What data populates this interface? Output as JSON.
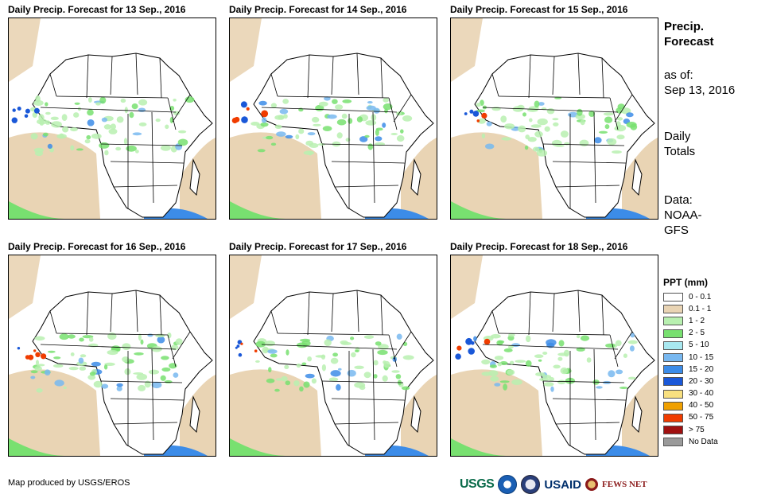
{
  "panels": [
    {
      "title": "Daily Precip. Forecast for 13 Sep., 2016"
    },
    {
      "title": "Daily Precip. Forecast for 14 Sep., 2016"
    },
    {
      "title": "Daily Precip. Forecast for 15 Sep., 2016"
    },
    {
      "title": "Daily Precip. Forecast for 16 Sep., 2016"
    },
    {
      "title": "Daily Precip. Forecast for 17 Sep., 2016"
    },
    {
      "title": "Daily Precip. Forecast for 18 Sep., 2016"
    }
  ],
  "sidebar": {
    "title_line1": "Precip.",
    "title_line2": "Forecast",
    "asof_line1": "as of:",
    "asof_line2": "Sep 13, 2016",
    "daily_line1": "Daily",
    "daily_line2": "Totals",
    "data_line1": "Data:",
    "data_line2": "NOAA-",
    "data_line3": "GFS"
  },
  "legend": {
    "title": "PPT (mm)",
    "items": [
      {
        "label": "0 - 0.1",
        "color": "#ffffff"
      },
      {
        "label": "0.1 - 1",
        "color": "#e9d4b4"
      },
      {
        "label": "1 - 2",
        "color": "#b8f0b0"
      },
      {
        "label": "2 - 5",
        "color": "#78e070"
      },
      {
        "label": "5 - 10",
        "color": "#a8e8f0"
      },
      {
        "label": "10 - 15",
        "color": "#78b8f0"
      },
      {
        "label": "15 - 20",
        "color": "#3c8ce8"
      },
      {
        "label": "20 - 30",
        "color": "#1a58d8"
      },
      {
        "label": "30 - 40",
        "color": "#f8e080"
      },
      {
        "label": "40 - 50",
        "color": "#f0a000"
      },
      {
        "label": "50 - 75",
        "color": "#f03c00"
      },
      {
        "label": "> 75",
        "color": "#a01010"
      },
      {
        "label": "No Data",
        "color": "#9a9a9a"
      }
    ]
  },
  "footer": {
    "credit": "Map produced by USGS/EROS"
  },
  "logos": {
    "usgs": "USGS",
    "usaid": "USAID",
    "fews": "FEWS NET"
  }
}
